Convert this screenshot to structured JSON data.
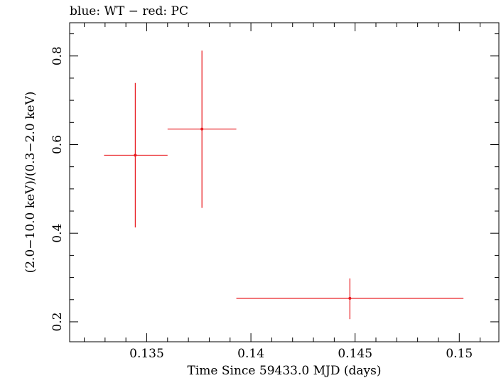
{
  "chart_data": {
    "type": "scatter",
    "title": "blue: WT − red: PC",
    "xlabel": "Time Since 59433.0 MJD (days)",
    "ylabel": "(2.0−10.0 keV)/(0.3−2.0 keV)",
    "xlim": [
      0.1313,
      0.1519
    ],
    "ylim": [
      0.155,
      0.875
    ],
    "x_ticks": [
      0.135,
      0.14,
      0.145,
      0.15
    ],
    "x_tick_labels": [
      "0.135",
      "0.14",
      "0.145",
      "0.15"
    ],
    "y_ticks": [
      0.2,
      0.4,
      0.6,
      0.8
    ],
    "y_tick_labels": [
      "0.2",
      "0.4",
      "0.6",
      "0.8"
    ],
    "x_minor_step": 0.001,
    "y_minor_step": 0.05,
    "grid": false,
    "series": [
      {
        "color": "#e8191e",
        "points": [
          {
            "x": 0.13445,
            "y": 0.576,
            "xerr_lo": 0.13295,
            "xerr_hi": 0.136,
            "yerr_lo": 0.413,
            "yerr_hi": 0.739
          },
          {
            "x": 0.13765,
            "y": 0.635,
            "xerr_lo": 0.136,
            "xerr_hi": 0.1393,
            "yerr_lo": 0.457,
            "yerr_hi": 0.812
          },
          {
            "x": 0.14475,
            "y": 0.253,
            "xerr_lo": 0.1393,
            "xerr_hi": 0.1502,
            "yerr_lo": 0.206,
            "yerr_hi": 0.298
          }
        ]
      }
    ]
  }
}
